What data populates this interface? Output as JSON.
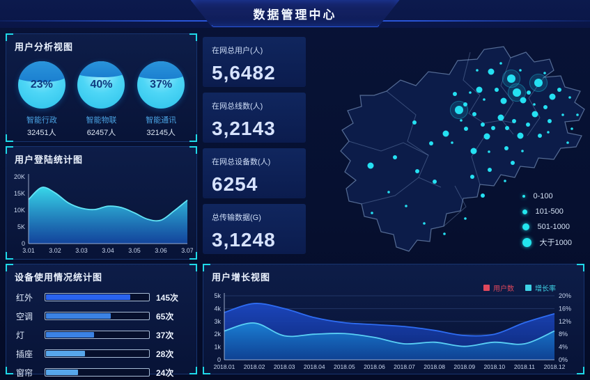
{
  "header": {
    "title": "数据管理中心"
  },
  "user_analysis": {
    "title": "用户分析视图",
    "gauges": [
      {
        "percent": "23%",
        "label": "智能行政",
        "count": "32451人",
        "cap_pct": 44
      },
      {
        "percent": "40%",
        "label": "智能物联",
        "count": "62457人",
        "cap_pct": 34
      },
      {
        "percent": "37%",
        "label": "智能通讯",
        "count": "32145人",
        "cap_pct": 38
      }
    ]
  },
  "login_stats": {
    "title": "用户登陆统计图"
  },
  "device_usage": {
    "title": "设备使用情况统计图",
    "rows": [
      {
        "label": "红外",
        "value": "145次",
        "fill_pct": 82,
        "color": "#2a63ee"
      },
      {
        "label": "空调",
        "value": "65次",
        "fill_pct": 63,
        "color": "#3b82e4"
      },
      {
        "label": "灯",
        "value": "37次",
        "fill_pct": 47,
        "color": "#3b82e4"
      },
      {
        "label": "插座",
        "value": "28次",
        "fill_pct": 38,
        "color": "#57a6ea"
      },
      {
        "label": "窗帘",
        "value": "24次",
        "fill_pct": 31,
        "color": "#57a6ea"
      }
    ]
  },
  "kpis": [
    {
      "label": "在网总用户(人)",
      "value": "5,6482"
    },
    {
      "label": "在网总线数(人)",
      "value": "3,2143"
    },
    {
      "label": "在网总设备数(人)",
      "value": "6254"
    },
    {
      "label": "总传输数据(G)",
      "value": "3,1248"
    }
  ],
  "map": {
    "legend": [
      {
        "label": "0-100",
        "size": 4
      },
      {
        "label": "101-500",
        "size": 7
      },
      {
        "label": "501-1000",
        "size": 10
      },
      {
        "label": "大于1000",
        "size": 13
      }
    ],
    "dots": [
      [
        297,
        68,
        6
      ],
      [
        305,
        88,
        6
      ],
      [
        336,
        74,
        6
      ],
      [
        222,
        113,
        6
      ],
      [
        268,
        58,
        4.5
      ],
      [
        286,
        100,
        4.5
      ],
      [
        314,
        99,
        4.5
      ],
      [
        251,
        84,
        4.5
      ],
      [
        282,
        124,
        4.5
      ],
      [
        331,
        119,
        4.5
      ],
      [
        356,
        94,
        4.5
      ],
      [
        95,
        193,
        4.5
      ],
      [
        203,
        147,
        4.5
      ],
      [
        262,
        151,
        4.5
      ],
      [
        310,
        150,
        4.5
      ],
      [
        243,
        172,
        4.5
      ],
      [
        216,
        90,
        3
      ],
      [
        231,
        105,
        3
      ],
      [
        244,
        119,
        3
      ],
      [
        256,
        134,
        3
      ],
      [
        271,
        139,
        3
      ],
      [
        291,
        139,
        3
      ],
      [
        301,
        129,
        3
      ],
      [
        321,
        134,
        3
      ],
      [
        346,
        109,
        3
      ],
      [
        366,
        84,
        3
      ],
      [
        352,
        129,
        3
      ],
      [
        182,
        161,
        3
      ],
      [
        130,
        181,
        3
      ],
      [
        162,
        201,
        3
      ],
      [
        187,
        216,
        3
      ],
      [
        241,
        209,
        3
      ],
      [
        266,
        199,
        3
      ],
      [
        256,
        236,
        3
      ],
      [
        299,
        189,
        3
      ],
      [
        158,
        131,
        3
      ],
      [
        232,
        140,
        3
      ],
      [
        276,
        84,
        3
      ],
      [
        322,
        88,
        3
      ],
      [
        338,
        150,
        3
      ],
      [
        290,
        168,
        3
      ],
      [
        381,
        95,
        1.8
      ],
      [
        371,
        120,
        1.8
      ],
      [
        345,
        60,
        1.8
      ],
      [
        310,
        56,
        1.8
      ],
      [
        282,
        46,
        1.8
      ],
      [
        258,
        98,
        1.8
      ],
      [
        238,
        88,
        1.8
      ],
      [
        225,
        128,
        1.8
      ],
      [
        212,
        160,
        1.8
      ],
      [
        121,
        231,
        1.8
      ],
      [
        146,
        251,
        1.8
      ],
      [
        97,
        261,
        1.8
      ],
      [
        172,
        276,
        1.8
      ],
      [
        201,
        291,
        1.8
      ],
      [
        231,
        269,
        1.8
      ],
      [
        265,
        173,
        1.8
      ],
      [
        288,
        215,
        1.8
      ],
      [
        313,
        172,
        1.8
      ],
      [
        248,
        56,
        1.8
      ],
      [
        350,
        145,
        1.8
      ],
      [
        378,
        160,
        1.8
      ],
      [
        330,
        105,
        1.8
      ],
      [
        392,
        120,
        1.8
      ],
      [
        384,
        140,
        1.8
      ]
    ]
  },
  "user_growth": {
    "title": "用户增长视图",
    "legend": [
      {
        "label": "用户数",
        "color": "#e0485c"
      },
      {
        "label": "增长率",
        "color": "#3ed2e6"
      }
    ]
  },
  "chart_data": [
    {
      "id": "user_analysis",
      "type": "pie",
      "title": "用户分析视图",
      "categories": [
        "智能行政",
        "智能物联",
        "智能通讯"
      ],
      "values": [
        23,
        40,
        37
      ],
      "value_unit": "%",
      "counts": [
        32451,
        62457,
        32145
      ],
      "count_unit": "人"
    },
    {
      "id": "login_stats",
      "type": "area",
      "title": "用户登陆统计图",
      "x": [
        3.01,
        3.015,
        3.02,
        3.025,
        3.03,
        3.035,
        3.04,
        3.045,
        3.05,
        3.055,
        3.06,
        3.065,
        3.07
      ],
      "values": [
        13200,
        16800,
        15200,
        12200,
        10600,
        10200,
        11200,
        10800,
        9200,
        7300,
        7000,
        9800,
        13000
      ],
      "xticks": [
        "3.01",
        "3.02",
        "3.03",
        "3.04",
        "3.05",
        "3.06",
        "3.07"
      ],
      "yticks": [
        "0",
        "5K",
        "10K",
        "15K",
        "20K"
      ],
      "ylim": [
        0,
        20000
      ],
      "grid": false,
      "legend_position": "none"
    },
    {
      "id": "device_usage",
      "type": "bar",
      "orientation": "horizontal",
      "title": "设备使用情况统计图",
      "categories": [
        "红外",
        "空调",
        "灯",
        "插座",
        "窗帘"
      ],
      "values": [
        145,
        65,
        37,
        28,
        24
      ],
      "unit": "次"
    },
    {
      "id": "user_growth",
      "type": "area",
      "title": "用户增长视图",
      "x": [
        "2018.01",
        "2018.02",
        "2018.03",
        "2018.04",
        "2018.05",
        "2018.06",
        "2018.07",
        "2018.08",
        "2018.09",
        "2018.10",
        "2018.11",
        "2018.12"
      ],
      "series": [
        {
          "name": "用户数",
          "axis": "left",
          "values": [
            3700,
            4400,
            4000,
            3300,
            2900,
            2750,
            2600,
            2300,
            1900,
            2000,
            2900,
            3600
          ]
        },
        {
          "name": "增长率",
          "axis": "right",
          "values": [
            9,
            11.5,
            7.5,
            8,
            8.2,
            7,
            5,
            5.5,
            4.2,
            5.5,
            5,
            9
          ]
        }
      ],
      "ylim_left": [
        0,
        5000
      ],
      "ylim_right": [
        0,
        20
      ],
      "yticks_left": [
        "0",
        "1k",
        "2k",
        "3k",
        "4k",
        "5k"
      ],
      "yticks_right": [
        "0%",
        "4%",
        "8%",
        "12%",
        "16%",
        "20%"
      ],
      "grid": true,
      "legend_position": "top-right"
    },
    {
      "id": "map_scatter",
      "type": "scatter",
      "legend": [
        "0-100",
        "101-500",
        "501-1000",
        "大于1000"
      ],
      "note": "dot size encodes user count bucket"
    }
  ],
  "colors": {
    "accent_cyan": "#1fd9e9",
    "login_area_top": "#3ae0f2",
    "login_area_bottom": "#1550b4",
    "login_line": "#62e4f5",
    "growth_series1_line": "#2e6cf2",
    "growth_series1_fill": "#1c47c0",
    "growth_series2_line": "#5ad0f5",
    "growth_series2_fill": "#1b86d8",
    "map_dot": "#25e0f2",
    "kpi_value": "#d7e3ff"
  }
}
